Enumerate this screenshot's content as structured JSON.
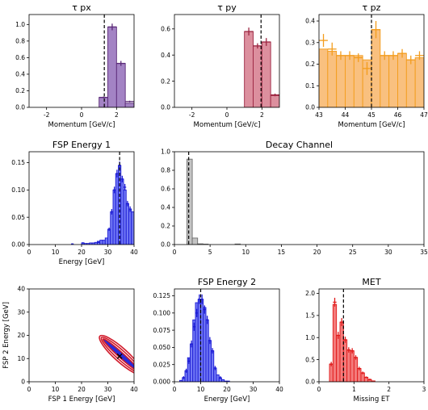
{
  "chart_data": [
    {
      "id": "tau_px",
      "type": "histogram",
      "title": "τ px",
      "xlabel": "Momentum [GeV/c]",
      "ylabel": "",
      "xlim": [
        -3,
        3
      ],
      "ylim": [
        0,
        1.12
      ],
      "xticks": [
        -2,
        0,
        2
      ],
      "yticks": [
        0.0,
        0.2,
        0.4,
        0.6,
        0.8,
        1.0
      ],
      "bin_width": 0.5,
      "bin_starts": [
        -3,
        -2.5,
        -2,
        -1.5,
        -1,
        -0.5,
        0,
        0.5,
        1,
        1.5,
        2,
        2.5
      ],
      "fill_values": [
        0,
        0,
        0,
        0,
        0,
        0,
        0,
        0,
        0.12,
        0.97,
        0.53,
        0.05
      ],
      "points": [
        {
          "x": 1.25,
          "y": 0.12,
          "err": 0.01
        },
        {
          "x": 1.75,
          "y": 0.97,
          "err": 0.04
        },
        {
          "x": 2.25,
          "y": 0.53,
          "err": 0.03
        },
        {
          "x": 2.75,
          "y": 0.07,
          "err": 0.01
        }
      ],
      "vline": 1.3,
      "fill_color": "#a383c4",
      "line_color": "#5b2a78"
    },
    {
      "id": "tau_py",
      "type": "histogram",
      "title": "τ py",
      "xlabel": "Momentum [GeV/c]",
      "ylabel": "",
      "xlim": [
        -3,
        3
      ],
      "ylim": [
        0,
        0.71
      ],
      "xticks": [
        -2,
        0,
        2
      ],
      "yticks": [
        0.0,
        0.2,
        0.4,
        0.6
      ],
      "bin_width": 0.5,
      "bin_starts": [
        -3,
        -2.5,
        -2,
        -1.5,
        -1,
        -0.5,
        0,
        0.5,
        1,
        1.5,
        2,
        2.5
      ],
      "fill_values": [
        0,
        0,
        0,
        0,
        0,
        0,
        0,
        0,
        0.58,
        0.47,
        0.5,
        0.09
      ],
      "points": [
        {
          "x": 1.25,
          "y": 0.58,
          "err": 0.03
        },
        {
          "x": 1.75,
          "y": 0.47,
          "err": 0.02
        },
        {
          "x": 2.25,
          "y": 0.5,
          "err": 0.03
        },
        {
          "x": 2.75,
          "y": 0.095,
          "err": 0.01
        }
      ],
      "vline": 1.95,
      "fill_color": "#dc8f9e",
      "line_color": "#9c2541"
    },
    {
      "id": "tau_pz",
      "type": "histogram",
      "title": "τ pz",
      "xlabel": "Momentum [GeV/c]",
      "ylabel": "",
      "xlim": [
        43,
        47
      ],
      "ylim": [
        0,
        0.43
      ],
      "xticks": [
        43,
        44,
        45,
        46,
        47
      ],
      "yticks": [
        0.0,
        0.1,
        0.2,
        0.3,
        0.4
      ],
      "bin_width": 0.333,
      "bin_starts": [
        43,
        43.333,
        43.667,
        44,
        44.333,
        44.667,
        45,
        45.333,
        45.667,
        46,
        46.333,
        46.667
      ],
      "fill_values": [
        0.27,
        0.26,
        0.24,
        0.24,
        0.24,
        0.22,
        0.36,
        0.24,
        0.24,
        0.25,
        0.22,
        0.23
      ],
      "points": [
        {
          "x": 43.17,
          "y": 0.31,
          "err": 0.03
        },
        {
          "x": 43.5,
          "y": 0.27,
          "err": 0.03
        },
        {
          "x": 43.83,
          "y": 0.24,
          "err": 0.02
        },
        {
          "x": 44.17,
          "y": 0.24,
          "err": 0.02
        },
        {
          "x": 44.5,
          "y": 0.23,
          "err": 0.02
        },
        {
          "x": 44.83,
          "y": 0.18,
          "err": 0.03
        },
        {
          "x": 45.17,
          "y": 0.36,
          "err": 0.04
        },
        {
          "x": 45.5,
          "y": 0.24,
          "err": 0.02
        },
        {
          "x": 45.83,
          "y": 0.24,
          "err": 0.02
        },
        {
          "x": 46.17,
          "y": 0.25,
          "err": 0.02
        },
        {
          "x": 46.5,
          "y": 0.22,
          "err": 0.02
        },
        {
          "x": 46.83,
          "y": 0.24,
          "err": 0.02
        }
      ],
      "vline": 45.0,
      "fill_color": "#f9c07f",
      "line_color": "#f39c1c"
    },
    {
      "id": "fsp_energy_1",
      "type": "histogram",
      "title": "FSP Energy 1",
      "xlabel": "Energy [GeV]",
      "ylabel": "",
      "xlim": [
        0,
        40
      ],
      "ylim": [
        0,
        0.17
      ],
      "xticks": [
        0,
        10,
        20,
        30,
        40
      ],
      "yticks": [
        0.0,
        0.05,
        0.1,
        0.15
      ],
      "bin_width": 1,
      "bin_starts": [
        20,
        21,
        22,
        23,
        24,
        25,
        26,
        27,
        28,
        29,
        30,
        31,
        32,
        33,
        34,
        35,
        36,
        37,
        38,
        39
      ],
      "fill_values": [
        0.003,
        0.002,
        0.002,
        0.003,
        0.003,
        0.004,
        0.006,
        0.008,
        0.008,
        0.012,
        0.028,
        0.06,
        0.1,
        0.13,
        0.145,
        0.12,
        0.1,
        0.075,
        0.065,
        0.06
      ],
      "points": [
        {
          "x": 16.5,
          "y": 0.001,
          "err": 0.001
        },
        {
          "x": 20.5,
          "y": 0.003,
          "err": 0.001
        },
        {
          "x": 26.5,
          "y": 0.004,
          "err": 0.001
        },
        {
          "x": 30.5,
          "y": 0.028,
          "err": 0.003
        },
        {
          "x": 31.5,
          "y": 0.06,
          "err": 0.005
        },
        {
          "x": 32.5,
          "y": 0.1,
          "err": 0.006
        },
        {
          "x": 33.5,
          "y": 0.13,
          "err": 0.007
        },
        {
          "x": 34.5,
          "y": 0.145,
          "err": 0.007
        },
        {
          "x": 35.5,
          "y": 0.12,
          "err": 0.006
        },
        {
          "x": 36.5,
          "y": 0.105,
          "err": 0.006
        },
        {
          "x": 37.5,
          "y": 0.075,
          "err": 0.005
        },
        {
          "x": 38.5,
          "y": 0.065,
          "err": 0.005
        }
      ],
      "vline": 34.5,
      "fill_color": "#7178f5",
      "line_color": "#1b1bd4"
    },
    {
      "id": "decay_channel",
      "type": "histogram",
      "title": "Decay Channel",
      "xlabel": "",
      "ylabel": "",
      "xlim": [
        0,
        35
      ],
      "ylim": [
        0,
        1.0
      ],
      "xticks": [
        0,
        5,
        10,
        15,
        20,
        25,
        30,
        35
      ],
      "yticks": [
        0.0,
        0.2,
        0.4,
        0.6,
        0.8,
        1.0
      ],
      "bin_width": 0.75,
      "bin_starts": [
        1.75,
        2.5,
        3.25,
        4.0,
        8.5
      ],
      "fill_values": [
        0.92,
        0.07,
        0.008,
        0.005,
        0.006
      ],
      "points": [],
      "vline": 2.0,
      "fill_color": "#c4c4c4",
      "line_color": "#6d6d6d"
    },
    {
      "id": "fsp_2d",
      "type": "contour",
      "title": "",
      "xlabel": "FSP 1 Energy [GeV]",
      "ylabel": "FSP 2 Energy [GeV]",
      "xlim": [
        0,
        40
      ],
      "ylim": [
        0,
        40
      ],
      "xticks": [
        0,
        10,
        20,
        30,
        40
      ],
      "yticks": [
        0,
        10,
        20,
        30,
        40
      ],
      "ellipse_center": [
        35,
        11.5
      ],
      "ellipse_angle": 42,
      "ellipse_semi_axes": [
        [
          9.2,
          1.1
        ],
        [
          10.0,
          2.0
        ],
        [
          10.8,
          2.9
        ]
      ],
      "marker": [
        34.5,
        11.0
      ],
      "fill_color": "#2a2ad6",
      "line_color": "#d11a2a"
    },
    {
      "id": "fsp_energy_2",
      "type": "histogram",
      "title": "FSP Energy 2",
      "xlabel": "Energy [GeV]",
      "ylabel": "",
      "xlim": [
        0,
        40
      ],
      "ylim": [
        0,
        0.135
      ],
      "xticks": [
        0,
        10,
        20,
        30,
        40
      ],
      "yticks": [
        0.0,
        0.025,
        0.05,
        0.075,
        0.1,
        0.125
      ],
      "bin_width": 1,
      "bin_starts": [
        2,
        3,
        4,
        5,
        6,
        7,
        8,
        9,
        10,
        11,
        12,
        13,
        14,
        15,
        16,
        17,
        18,
        19,
        20
      ],
      "fill_values": [
        0.002,
        0.006,
        0.016,
        0.035,
        0.055,
        0.09,
        0.115,
        0.12,
        0.12,
        0.108,
        0.09,
        0.06,
        0.045,
        0.02,
        0.01,
        0.005,
        0.003,
        0.001,
        0.001
      ],
      "points": [
        {
          "x": 3.5,
          "y": 0.006,
          "err": 0.002
        },
        {
          "x": 4.5,
          "y": 0.016,
          "err": 0.003
        },
        {
          "x": 5.5,
          "y": 0.03,
          "err": 0.004
        },
        {
          "x": 6.5,
          "y": 0.055,
          "err": 0.005
        },
        {
          "x": 7.5,
          "y": 0.08,
          "err": 0.006
        },
        {
          "x": 8.5,
          "y": 0.1,
          "err": 0.006
        },
        {
          "x": 9.5,
          "y": 0.12,
          "err": 0.007
        },
        {
          "x": 10.5,
          "y": 0.12,
          "err": 0.007
        },
        {
          "x": 11.5,
          "y": 0.105,
          "err": 0.006
        },
        {
          "x": 12.5,
          "y": 0.09,
          "err": 0.006
        },
        {
          "x": 13.5,
          "y": 0.06,
          "err": 0.005
        },
        {
          "x": 14.5,
          "y": 0.045,
          "err": 0.004
        },
        {
          "x": 15.5,
          "y": 0.02,
          "err": 0.003
        },
        {
          "x": 17.5,
          "y": 0.006,
          "err": 0.002
        }
      ],
      "vline": 10.0,
      "fill_color": "#7178f5",
      "line_color": "#1b1bd4"
    },
    {
      "id": "met",
      "type": "histogram",
      "title": "MET",
      "xlabel": "Missing ET",
      "ylabel": "",
      "xlim": [
        0,
        3
      ],
      "ylim": [
        0,
        2.1
      ],
      "xticks": [
        0,
        1,
        2,
        3
      ],
      "yticks": [
        0.0,
        0.5,
        1.0,
        1.5,
        2.0
      ],
      "bin_width": 0.1,
      "bin_starts": [
        0.3,
        0.4,
        0.5,
        0.6,
        0.7,
        0.8,
        0.9,
        1.0,
        1.1,
        1.2,
        1.3,
        1.4,
        1.5
      ],
      "fill_values": [
        0.4,
        1.75,
        1.05,
        1.35,
        0.95,
        0.72,
        0.7,
        0.55,
        0.3,
        0.2,
        0.1,
        0.05,
        0.02
      ],
      "points": [
        {
          "x": 0.35,
          "y": 0.4,
          "err": 0.05
        },
        {
          "x": 0.45,
          "y": 1.8,
          "err": 0.1
        },
        {
          "x": 0.55,
          "y": 1.05,
          "err": 0.08
        },
        {
          "x": 0.65,
          "y": 1.35,
          "err": 0.09
        },
        {
          "x": 0.75,
          "y": 0.95,
          "err": 0.07
        },
        {
          "x": 0.85,
          "y": 0.72,
          "err": 0.06
        },
        {
          "x": 0.95,
          "y": 0.7,
          "err": 0.06
        },
        {
          "x": 1.05,
          "y": 0.55,
          "err": 0.05
        },
        {
          "x": 1.15,
          "y": 0.3,
          "err": 0.04
        },
        {
          "x": 1.25,
          "y": 0.2,
          "err": 0.03
        },
        {
          "x": 1.35,
          "y": 0.1,
          "err": 0.02
        },
        {
          "x": 1.45,
          "y": 0.05,
          "err": 0.02
        }
      ],
      "vline": 0.7,
      "fill_color": "#f47c7c",
      "line_color": "#e01919"
    }
  ]
}
